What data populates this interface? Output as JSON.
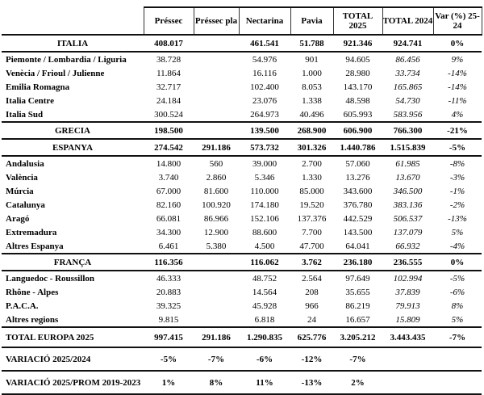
{
  "table": {
    "columns": [
      "Préssec",
      "Préssec pla",
      "Nectarina",
      "Pavia",
      "TOTAL 2025",
      "TOTAL 2024",
      "Var (%) 25-24"
    ],
    "rows": [
      {
        "type": "country",
        "name": "ITALIA",
        "values": [
          "408.017",
          "",
          "461.541",
          "51.788",
          "921.346",
          "924.741",
          "0%"
        ]
      },
      {
        "type": "region",
        "name": "Piemonte / Lombardia / Liguria",
        "values": [
          "38.728",
          "",
          "54.976",
          "901",
          "94.605",
          "86.456",
          "9%"
        ]
      },
      {
        "type": "region",
        "name": "Venècia / Frioul / Julienne",
        "values": [
          "11.864",
          "",
          "16.116",
          "1.000",
          "28.980",
          "33.734",
          "-14%"
        ]
      },
      {
        "type": "region",
        "name": "Emilia Romagna",
        "values": [
          "32.717",
          "",
          "102.400",
          "8.053",
          "143.170",
          "165.865",
          "-14%"
        ]
      },
      {
        "type": "region",
        "name": "Italia Centre",
        "values": [
          "24.184",
          "",
          "23.076",
          "1.338",
          "48.598",
          "54.730",
          "-11%"
        ]
      },
      {
        "type": "region",
        "name": "Italia Sud",
        "values": [
          "300.524",
          "",
          "264.973",
          "40.496",
          "605.993",
          "583.956",
          "4%"
        ]
      },
      {
        "type": "country",
        "name": "GRECIA",
        "values": [
          "198.500",
          "",
          "139.500",
          "268.900",
          "606.900",
          "766.300",
          "-21%"
        ]
      },
      {
        "type": "country",
        "name": "ESPANYA",
        "values": [
          "274.542",
          "291.186",
          "573.732",
          "301.326",
          "1.440.786",
          "1.515.839",
          "-5%"
        ]
      },
      {
        "type": "region",
        "name": "Andalusia",
        "values": [
          "14.800",
          "560",
          "39.000",
          "2.700",
          "57.060",
          "61.985",
          "-8%"
        ]
      },
      {
        "type": "region",
        "name": "València",
        "values": [
          "3.740",
          "2.860",
          "5.346",
          "1.330",
          "13.276",
          "13.670",
          "-3%"
        ]
      },
      {
        "type": "region",
        "name": "Múrcia",
        "values": [
          "67.000",
          "81.600",
          "110.000",
          "85.000",
          "343.600",
          "346.500",
          "-1%"
        ]
      },
      {
        "type": "region",
        "name": "Catalunya",
        "values": [
          "82.160",
          "100.920",
          "174.180",
          "19.520",
          "376.780",
          "383.136",
          "-2%"
        ]
      },
      {
        "type": "region",
        "name": "Aragó",
        "values": [
          "66.081",
          "86.966",
          "152.106",
          "137.376",
          "442.529",
          "506.537",
          "-13%"
        ]
      },
      {
        "type": "region",
        "name": "Extremadura",
        "values": [
          "34.300",
          "12.900",
          "88.600",
          "7.700",
          "143.500",
          "137.079",
          "5%"
        ]
      },
      {
        "type": "region",
        "name": "Altres Espanya",
        "values": [
          "6.461",
          "5.380",
          "4.500",
          "47.700",
          "64.041",
          "66.932",
          "-4%"
        ]
      },
      {
        "type": "country",
        "name": "FRANÇA",
        "values": [
          "116.356",
          "",
          "116.062",
          "3.762",
          "236.180",
          "236.555",
          "0%"
        ]
      },
      {
        "type": "region",
        "name": "Languedoc - Roussillon",
        "values": [
          "46.333",
          "",
          "48.752",
          "2.564",
          "97.649",
          "102.994",
          "-5%"
        ]
      },
      {
        "type": "region",
        "name": "Rhône - Alpes",
        "values": [
          "20.883",
          "",
          "14.564",
          "208",
          "35.655",
          "37.839",
          "-6%"
        ]
      },
      {
        "type": "region",
        "name": "P.A.C.A.",
        "values": [
          "39.325",
          "",
          "45.928",
          "966",
          "86.219",
          "79.913",
          "8%"
        ]
      },
      {
        "type": "region",
        "name": "Altres regions",
        "values": [
          "9.815",
          "",
          "6.818",
          "24",
          "16.657",
          "15.809",
          "5%"
        ]
      },
      {
        "type": "total",
        "name": "TOTAL EUROPA 2025",
        "values": [
          "997.415",
          "291.186",
          "1.290.835",
          "625.776",
          "3.205.212",
          "3.443.435",
          "-7%"
        ]
      },
      {
        "type": "variation",
        "name": "VARIACIÓ 2025/2024",
        "values": [
          "-5%",
          "-7%",
          "-6%",
          "-12%",
          "-7%",
          "",
          ""
        ]
      },
      {
        "type": "variation",
        "name": "VARIACIÓ 2025/PROM 2019-2023",
        "values": [
          "1%",
          "8%",
          "11%",
          "-13%",
          "2%",
          "",
          ""
        ]
      }
    ]
  }
}
